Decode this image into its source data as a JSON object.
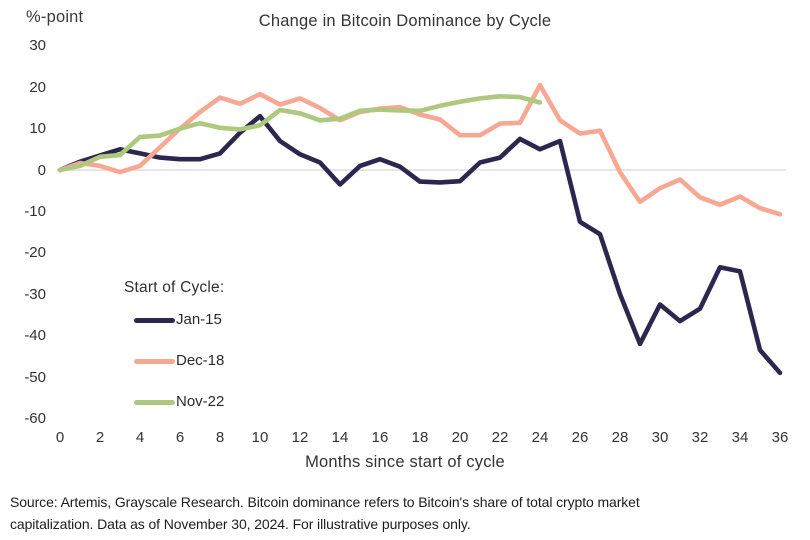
{
  "header": {
    "y_axis_unit": "%-point",
    "title": "Change in Bitcoin Dominance by Cycle"
  },
  "chart_data": {
    "type": "line",
    "title": "Change in Bitcoin Dominance by Cycle",
    "ylabel": "%-point",
    "xlabel": "Months since start of cycle",
    "xlim": [
      0,
      36
    ],
    "ylim": [
      -60,
      30
    ],
    "x_ticks": [
      0,
      2,
      4,
      6,
      8,
      10,
      12,
      14,
      16,
      18,
      20,
      22,
      24,
      26,
      28,
      30,
      32,
      34,
      36
    ],
    "y_ticks": [
      30,
      20,
      10,
      0,
      -10,
      -20,
      -30,
      -40,
      -50,
      -60
    ],
    "grid": "zero-baseline-only",
    "zero_line_color": "#d8d8d8",
    "legend_title": "Start of Cycle:",
    "legend_position": "inside-bottom-left",
    "series": [
      {
        "name": "Jan-15",
        "color": "#2d2750",
        "months": [
          0,
          1,
          2,
          3,
          4,
          5,
          6,
          7,
          8,
          9,
          10,
          11,
          12,
          13,
          14,
          15,
          16,
          17,
          18,
          19,
          20,
          21,
          22,
          23,
          24,
          25,
          26,
          27,
          28,
          29,
          30,
          31,
          32,
          33,
          34,
          35,
          36
        ],
        "values": [
          0,
          2,
          3.5,
          5,
          4,
          3,
          2.6,
          2.6,
          4,
          9,
          13,
          7,
          3.8,
          1.8,
          -3.5,
          1,
          2.6,
          0.8,
          -2.8,
          -3,
          -2.7,
          1.8,
          3,
          7.5,
          5,
          7,
          -12.5,
          -15.5,
          -30,
          -42,
          -32.5,
          -36.5,
          -33.5,
          -23.5,
          -24.5,
          -43.5,
          -49
        ]
      },
      {
        "name": "Dec-18",
        "color": "#f6a893",
        "months": [
          0,
          1,
          2,
          3,
          4,
          5,
          6,
          7,
          8,
          9,
          10,
          11,
          12,
          13,
          14,
          15,
          16,
          17,
          18,
          19,
          20,
          21,
          22,
          23,
          24,
          25,
          26,
          27,
          28,
          29,
          30,
          31,
          32,
          33,
          34,
          35,
          36
        ],
        "values": [
          0,
          1.7,
          1,
          -0.5,
          1,
          5.5,
          10,
          14,
          17.5,
          16,
          18.3,
          15.8,
          17.3,
          15,
          12,
          14,
          14.8,
          15.2,
          13.4,
          12.2,
          8.4,
          8.4,
          11.2,
          11.4,
          20.5,
          12,
          8.8,
          9.5,
          -0.5,
          -7.7,
          -4.4,
          -2.3,
          -6.6,
          -8.4,
          -6.4,
          -9.2,
          -10.7
        ]
      },
      {
        "name": "Nov-22",
        "color": "#aec87e",
        "months": [
          0,
          1,
          2,
          3,
          4,
          5,
          6,
          7,
          8,
          9,
          10,
          11,
          12,
          13,
          14,
          15,
          16,
          17,
          18,
          19,
          20,
          21,
          22,
          23,
          24
        ],
        "values": [
          0,
          1,
          3.2,
          3.6,
          8,
          8.3,
          10,
          11.3,
          10.2,
          9.8,
          10.8,
          14.5,
          13.7,
          12,
          12.4,
          14.3,
          14.6,
          14.4,
          14.3,
          15.5,
          16.5,
          17.3,
          17.8,
          17.6,
          16.3
        ]
      }
    ]
  },
  "footer": {
    "line1": "Source: Artemis, Grayscale Research. Bitcoin dominance refers to Bitcoin's share of total crypto market",
    "line2": "capitalization. Data as of November 30, 2024. For illustrative purposes only."
  }
}
